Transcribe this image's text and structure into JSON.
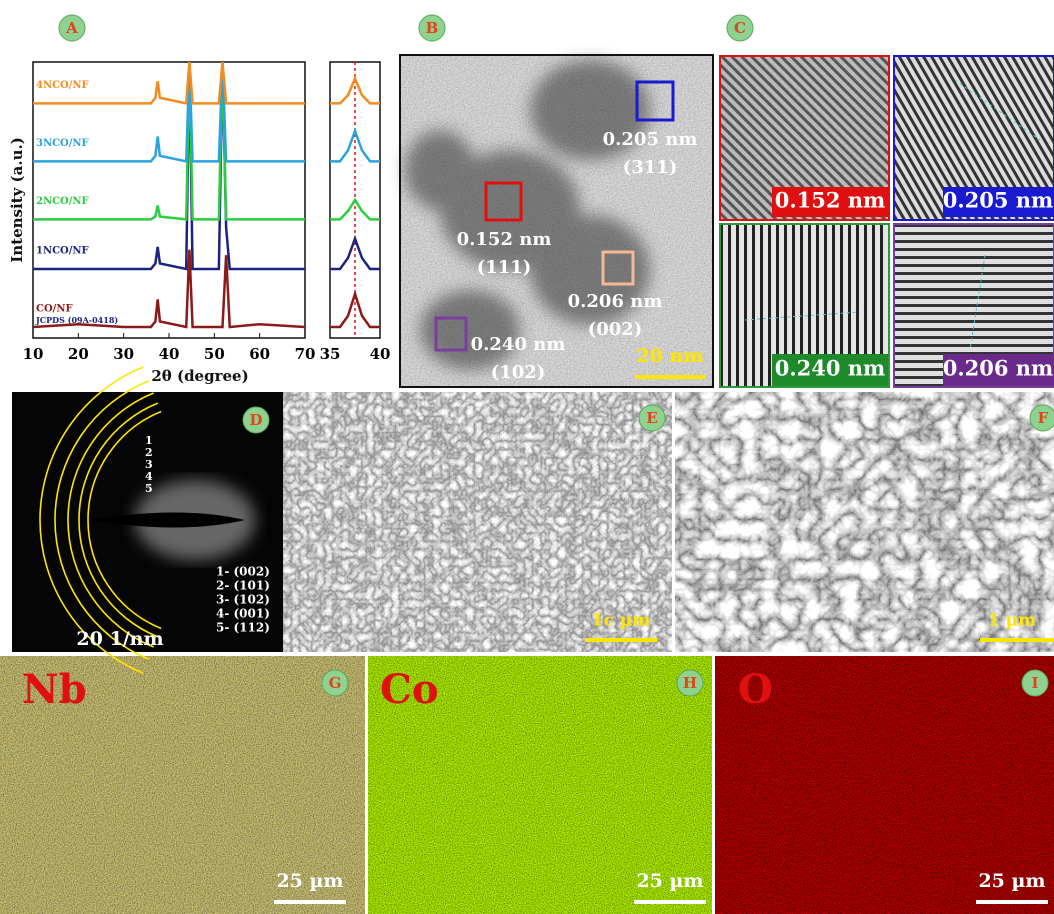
{
  "chart_data": [
    {
      "type": "line",
      "xlabel": "2θ (degree)",
      "ylabel": "Intensity (a.u.)",
      "annotation": "JCPDS (09A-0418)",
      "x": [
        10,
        20,
        30,
        36,
        37,
        37.5,
        38,
        43.8,
        44.5,
        45.2,
        51,
        51.8,
        52.6,
        53.4,
        60,
        70
      ],
      "xlim": [
        10,
        70
      ],
      "xticks": [
        10,
        20,
        30,
        40,
        50,
        60,
        70
      ],
      "ylim": [
        0,
        100
      ],
      "series": [
        {
          "name": "CO/NF",
          "color": "#8b1a1a",
          "values": [
            4,
            5,
            4,
            4,
            6,
            14,
            6,
            4,
            32,
            4,
            4,
            4,
            30,
            4,
            5,
            4
          ]
        },
        {
          "name": "1NCO/NF",
          "color": "#1a237e",
          "values": [
            25,
            25,
            25,
            25,
            27,
            33,
            27,
            25,
            100,
            25,
            25,
            100,
            40,
            25,
            25,
            25
          ]
        },
        {
          "name": "2NCO/NF",
          "color": "#2ecc40",
          "values": [
            43,
            43,
            43,
            43,
            44,
            48,
            44,
            43,
            100,
            43,
            43,
            100,
            43,
            43,
            43,
            43
          ]
        },
        {
          "name": "3NCO/NF",
          "color": "#29a3e0",
          "values": [
            64,
            64,
            64,
            64,
            66,
            73,
            66,
            64,
            100,
            64,
            64,
            100,
            64,
            64,
            64,
            64
          ]
        },
        {
          "name": "4NCO/NF",
          "color": "#f28c1e",
          "values": [
            85,
            85,
            85,
            85,
            87,
            93,
            87,
            85,
            100,
            85,
            85,
            100,
            85,
            85,
            85,
            85
          ]
        }
      ]
    },
    {
      "type": "line",
      "x": [
        35,
        36,
        36.8,
        37.5,
        38.2,
        39,
        40
      ],
      "xlim": [
        35,
        40
      ],
      "xticks": [
        35,
        40
      ],
      "ylim": [
        0,
        100
      ],
      "vline": 37.5,
      "series": [
        {
          "color": "#8b1a1a",
          "values": [
            4,
            4,
            8,
            16,
            8,
            4,
            4
          ]
        },
        {
          "color": "#1a237e",
          "values": [
            25,
            25,
            29,
            36,
            29,
            25,
            25
          ]
        },
        {
          "color": "#2ecc40",
          "values": [
            43,
            43,
            46,
            50,
            46,
            43,
            43
          ]
        },
        {
          "color": "#29a3e0",
          "values": [
            64,
            64,
            68,
            75,
            68,
            64,
            64
          ]
        },
        {
          "color": "#f28c1e",
          "values": [
            85,
            85,
            88,
            94,
            88,
            85,
            85
          ]
        }
      ]
    }
  ],
  "panels": {
    "letters": [
      "A",
      "B",
      "C",
      "D",
      "E",
      "F",
      "G",
      "H",
      "I"
    ],
    "B": {
      "labels": [
        {
          "spacing": "0.205 nm",
          "plane": "(311)"
        },
        {
          "spacing": "0.152 nm",
          "plane": "(111)"
        },
        {
          "spacing": "0.206 nm",
          "plane": "(002)"
        },
        {
          "spacing": "0.240 nm",
          "plane": "(102)"
        }
      ],
      "scale": "20 nm"
    },
    "C": {
      "labels": [
        "0.152 nm",
        "0.205 nm",
        "0.240 nm",
        "0.206 nm"
      ]
    },
    "D": {
      "rings": [
        "1",
        "2",
        "3",
        "4",
        "5"
      ],
      "indices": [
        "1- (002)",
        "2- (101)",
        "3- (102)",
        "4- (001)",
        "5- (112)"
      ],
      "scale": "20 1/nm"
    },
    "E": {
      "scale": "1c µm"
    },
    "F": {
      "scale": "1 µm"
    },
    "G": {
      "element": "Nb",
      "scale": "25 µm"
    },
    "H": {
      "element": "Co",
      "scale": "25 µm"
    },
    "I": {
      "element": "O",
      "scale": "25 µm"
    }
  }
}
